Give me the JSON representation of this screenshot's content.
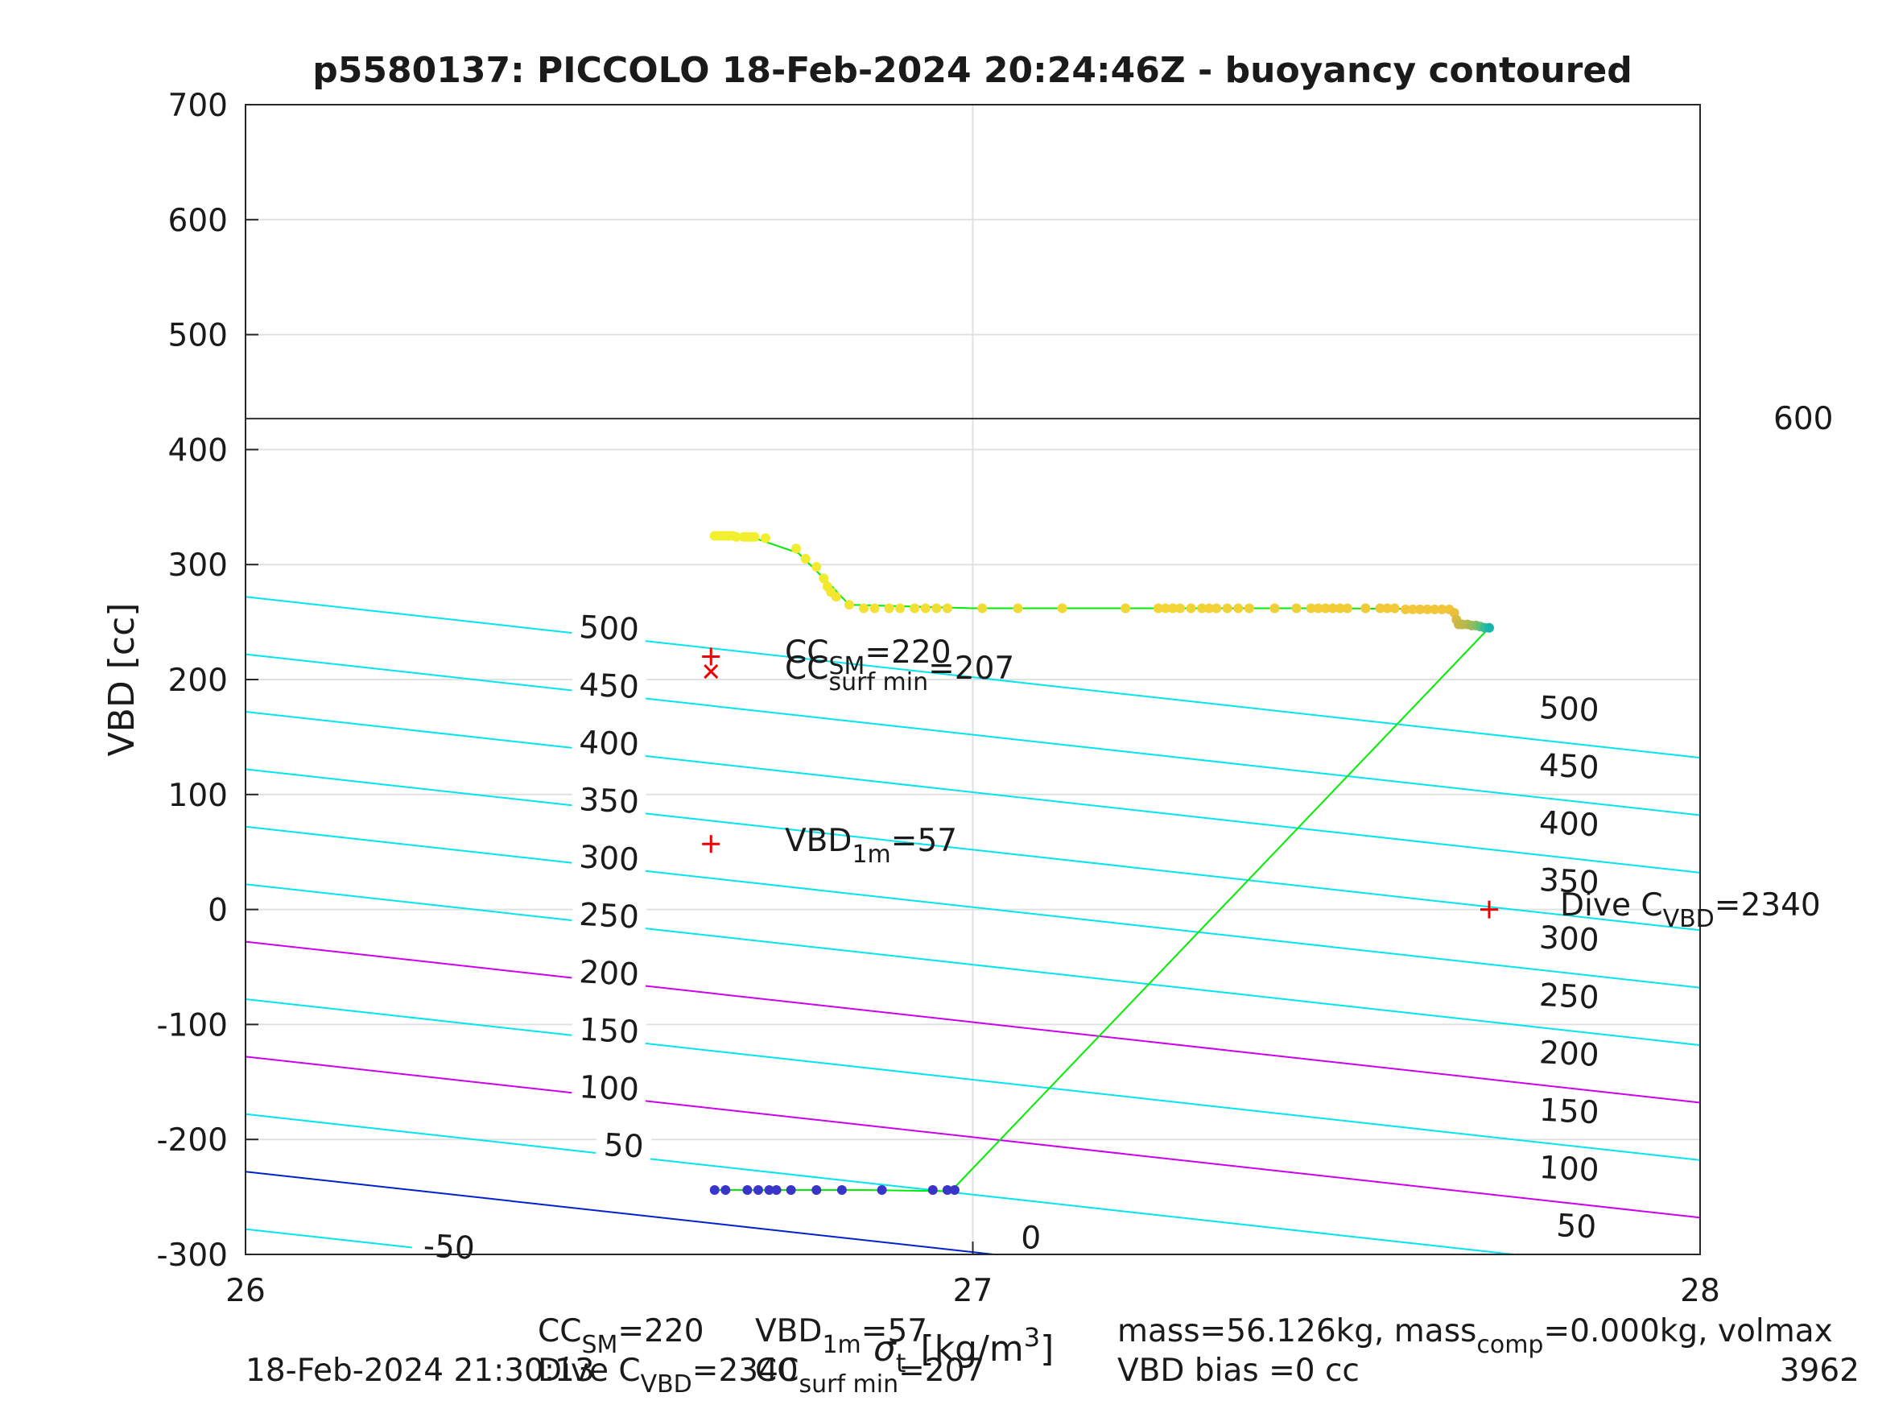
{
  "chart_data": {
    "type": "scatter",
    "title": "p5580137: PICCOLO 18-Feb-2024 20:24:46Z - buoyancy contoured",
    "ylabel": "VBD [cc]",
    "xlabel": {
      "main": "σ",
      "sub": "t",
      "unit": "[kg/m",
      "sup": "3",
      "close": "]"
    },
    "xlim": [
      26,
      28
    ],
    "ylim": [
      -300,
      700
    ],
    "xticks": [
      "26",
      "27",
      "28"
    ],
    "yticks": [
      "700",
      "600",
      "500",
      "400",
      "300",
      "200",
      "100",
      "0",
      "-100",
      "-200",
      "-300"
    ],
    "grid": true,
    "hline": {
      "y": 427,
      "label": "600"
    },
    "contours": [
      {
        "level": -50,
        "color": "#00e5ee",
        "y0": -278,
        "slope": -70
      },
      {
        "level": 0,
        "color": "#0022cc",
        "y0": -228,
        "slope": -70
      },
      {
        "level": 50,
        "color": "#00e5ee",
        "y0": -178,
        "slope": -70
      },
      {
        "level": 100,
        "color": "#cc00ee",
        "y0": -128,
        "slope": -70
      },
      {
        "level": 150,
        "color": "#00e5ee",
        "y0": -78,
        "slope": -70
      },
      {
        "level": 200,
        "color": "#cc00ee",
        "y0": -28,
        "slope": -70
      },
      {
        "level": 250,
        "color": "#00e5ee",
        "y0": 22,
        "slope": -70
      },
      {
        "level": 300,
        "color": "#00e5ee",
        "y0": 72,
        "slope": -70
      },
      {
        "level": 350,
        "color": "#00e5ee",
        "y0": 122,
        "slope": -70
      },
      {
        "level": 400,
        "color": "#00e5ee",
        "y0": 172,
        "slope": -70
      },
      {
        "level": 450,
        "color": "#00e5ee",
        "y0": 222,
        "slope": -70
      },
      {
        "level": 500,
        "color": "#00e5ee",
        "y0": 272,
        "slope": -70
      }
    ],
    "contour_labels_left": [
      {
        "text": "-50",
        "x": 26.28,
        "y": -293
      },
      {
        "text": "0",
        "x": 27.08,
        "y": -285
      },
      {
        "text": "50",
        "x": 26.52,
        "y": -205
      },
      {
        "text": "100",
        "x": 26.5,
        "y": -155
      },
      {
        "text": "150",
        "x": 26.5,
        "y": -105
      },
      {
        "text": "200",
        "x": 26.5,
        "y": -55
      },
      {
        "text": "250",
        "x": 26.5,
        "y": -5
      },
      {
        "text": "300",
        "x": 26.5,
        "y": 45
      },
      {
        "text": "350",
        "x": 26.5,
        "y": 95
      },
      {
        "text": "400",
        "x": 26.5,
        "y": 145
      },
      {
        "text": "450",
        "x": 26.5,
        "y": 195
      },
      {
        "text": "500",
        "x": 26.5,
        "y": 245
      }
    ],
    "contour_labels_right": [
      {
        "text": "50",
        "x": 27.83,
        "y": -275
      },
      {
        "text": "100",
        "x": 27.82,
        "y": -225
      },
      {
        "text": "150",
        "x": 27.82,
        "y": -175
      },
      {
        "text": "200",
        "x": 27.82,
        "y": -125
      },
      {
        "text": "250",
        "x": 27.82,
        "y": -75
      },
      {
        "text": "300",
        "x": 27.82,
        "y": -25
      },
      {
        "text": "350",
        "x": 27.82,
        "y": 25
      },
      {
        "text": "400",
        "x": 27.82,
        "y": 75
      },
      {
        "text": "450",
        "x": 27.82,
        "y": 125
      },
      {
        "text": "500",
        "x": 27.82,
        "y": 175
      }
    ],
    "trace": [
      {
        "x": 26.64,
        "y": 325
      },
      {
        "x": 26.7,
        "y": 323
      },
      {
        "x": 26.76,
        "y": 310
      },
      {
        "x": 26.8,
        "y": 285
      },
      {
        "x": 26.83,
        "y": 265
      },
      {
        "x": 27.0,
        "y": 262
      },
      {
        "x": 27.5,
        "y": 262
      },
      {
        "x": 27.66,
        "y": 261
      },
      {
        "x": 27.67,
        "y": 250
      },
      {
        "x": 27.71,
        "y": 245
      },
      {
        "x": 26.97,
        "y": -245
      },
      {
        "x": 26.85,
        "y": -244
      },
      {
        "x": 26.64,
        "y": -244
      }
    ],
    "trace_color": "#00ee00",
    "series_upper": [
      {
        "x": 26.645,
        "y": 325,
        "c": "#f2ef2e"
      },
      {
        "x": 26.65,
        "y": 325,
        "c": "#f2ef2e"
      },
      {
        "x": 26.655,
        "y": 325,
        "c": "#f2ef2e"
      },
      {
        "x": 26.66,
        "y": 325,
        "c": "#f2ef2e"
      },
      {
        "x": 26.665,
        "y": 325,
        "c": "#f2ef2e"
      },
      {
        "x": 26.67,
        "y": 325,
        "c": "#f2ef2e"
      },
      {
        "x": 26.675,
        "y": 324,
        "c": "#f2ef2e"
      },
      {
        "x": 26.685,
        "y": 324,
        "c": "#f2ef2e"
      },
      {
        "x": 26.69,
        "y": 324,
        "c": "#f2ef2e"
      },
      {
        "x": 26.695,
        "y": 324,
        "c": "#f2ef2e"
      },
      {
        "x": 26.7,
        "y": 324,
        "c": "#f2ef2e"
      },
      {
        "x": 26.715,
        "y": 323,
        "c": "#f2ef2e"
      },
      {
        "x": 26.757,
        "y": 314,
        "c": "#f2ec30"
      },
      {
        "x": 26.77,
        "y": 305,
        "c": "#f2ec30"
      },
      {
        "x": 26.785,
        "y": 298,
        "c": "#f2ea30"
      },
      {
        "x": 26.795,
        "y": 288,
        "c": "#f2ea30"
      },
      {
        "x": 26.8,
        "y": 281,
        "c": "#f2e830"
      },
      {
        "x": 26.805,
        "y": 276,
        "c": "#f2e830"
      },
      {
        "x": 26.812,
        "y": 272,
        "c": "#f2e630"
      },
      {
        "x": 26.83,
        "y": 265,
        "c": "#f2e432"
      },
      {
        "x": 26.85,
        "y": 262,
        "c": "#f2e232"
      },
      {
        "x": 26.865,
        "y": 262,
        "c": "#f2e232"
      },
      {
        "x": 26.885,
        "y": 262,
        "c": "#f2e033"
      },
      {
        "x": 26.9,
        "y": 262,
        "c": "#f2e033"
      },
      {
        "x": 26.92,
        "y": 262,
        "c": "#f2df33"
      },
      {
        "x": 26.935,
        "y": 262,
        "c": "#f2df33"
      },
      {
        "x": 26.95,
        "y": 262,
        "c": "#f2dd34"
      },
      {
        "x": 26.965,
        "y": 262,
        "c": "#f2dd34"
      },
      {
        "x": 27.013,
        "y": 262,
        "c": "#f2db34"
      },
      {
        "x": 27.062,
        "y": 262,
        "c": "#f2da34"
      },
      {
        "x": 27.123,
        "y": 262,
        "c": "#f2d835"
      },
      {
        "x": 27.21,
        "y": 262,
        "c": "#f2d635"
      },
      {
        "x": 27.255,
        "y": 262,
        "c": "#f2d535"
      },
      {
        "x": 27.265,
        "y": 262,
        "c": "#f2d535"
      },
      {
        "x": 27.275,
        "y": 262,
        "c": "#f2d435"
      },
      {
        "x": 27.285,
        "y": 262,
        "c": "#f2d435"
      },
      {
        "x": 27.3,
        "y": 262,
        "c": "#f2d336"
      },
      {
        "x": 27.315,
        "y": 262,
        "c": "#f2d336"
      },
      {
        "x": 27.325,
        "y": 262,
        "c": "#f2d236"
      },
      {
        "x": 27.335,
        "y": 262,
        "c": "#f2d236"
      },
      {
        "x": 27.35,
        "y": 262,
        "c": "#f2d136"
      },
      {
        "x": 27.365,
        "y": 262,
        "c": "#f2d136"
      },
      {
        "x": 27.38,
        "y": 262,
        "c": "#f2d036"
      },
      {
        "x": 27.415,
        "y": 262,
        "c": "#f2cf37"
      },
      {
        "x": 27.445,
        "y": 262,
        "c": "#f2ce37"
      },
      {
        "x": 27.465,
        "y": 262,
        "c": "#f2ce37"
      },
      {
        "x": 27.475,
        "y": 262,
        "c": "#f2cd37"
      },
      {
        "x": 27.485,
        "y": 262,
        "c": "#f2cd37"
      },
      {
        "x": 27.495,
        "y": 262,
        "c": "#f2cc37"
      },
      {
        "x": 27.505,
        "y": 262,
        "c": "#f2cc37"
      },
      {
        "x": 27.515,
        "y": 262,
        "c": "#f2cb38"
      },
      {
        "x": 27.54,
        "y": 262,
        "c": "#f2ca38"
      },
      {
        "x": 27.56,
        "y": 262,
        "c": "#f2c938"
      },
      {
        "x": 27.57,
        "y": 262,
        "c": "#f2c838"
      },
      {
        "x": 27.58,
        "y": 262,
        "c": "#f2c838"
      },
      {
        "x": 27.595,
        "y": 261,
        "c": "#f2c739"
      },
      {
        "x": 27.605,
        "y": 261,
        "c": "#f2c739"
      },
      {
        "x": 27.615,
        "y": 261,
        "c": "#f2c639"
      },
      {
        "x": 27.625,
        "y": 261,
        "c": "#f2c639"
      },
      {
        "x": 27.635,
        "y": 261,
        "c": "#f2c53a"
      },
      {
        "x": 27.645,
        "y": 261,
        "c": "#f2c53a"
      },
      {
        "x": 27.655,
        "y": 261,
        "c": "#f2c43a"
      },
      {
        "x": 27.662,
        "y": 258,
        "c": "#e9c03c"
      },
      {
        "x": 27.665,
        "y": 252,
        "c": "#d8bb40"
      },
      {
        "x": 27.668,
        "y": 248,
        "c": "#c8b845"
      },
      {
        "x": 27.673,
        "y": 248,
        "c": "#c0b848"
      },
      {
        "x": 27.68,
        "y": 248,
        "c": "#b5b84c"
      },
      {
        "x": 27.686,
        "y": 247,
        "c": "#a0bb55"
      },
      {
        "x": 27.692,
        "y": 247,
        "c": "#86bd62"
      },
      {
        "x": 27.698,
        "y": 246,
        "c": "#5cc07a"
      },
      {
        "x": 27.704,
        "y": 245,
        "c": "#33bd95"
      },
      {
        "x": 27.71,
        "y": 245,
        "c": "#18b5ab"
      }
    ],
    "series_lower": [
      {
        "x": 26.645,
        "y": -244
      },
      {
        "x": 26.66,
        "y": -244
      },
      {
        "x": 26.69,
        "y": -244
      },
      {
        "x": 26.705,
        "y": -244
      },
      {
        "x": 26.72,
        "y": -244
      },
      {
        "x": 26.73,
        "y": -244
      },
      {
        "x": 26.75,
        "y": -244
      },
      {
        "x": 26.785,
        "y": -244
      },
      {
        "x": 26.82,
        "y": -244
      },
      {
        "x": 26.875,
        "y": -244
      },
      {
        "x": 26.945,
        "y": -244
      },
      {
        "x": 26.965,
        "y": -244
      },
      {
        "x": 26.975,
        "y": -244
      }
    ],
    "series_lower_color": "#3a35c9",
    "markers": [
      {
        "symbol": "+",
        "x": 26.64,
        "y": 220
      },
      {
        "symbol": "×",
        "x": 26.64,
        "y": 207
      },
      {
        "symbol": "+",
        "x": 26.64,
        "y": 57
      },
      {
        "symbol": "+",
        "x": 27.71,
        "y": 0
      }
    ],
    "marker_color": "#ee0000",
    "annotations": {
      "cc_sm": {
        "base": "CC",
        "sub": "SM",
        "value": "=220"
      },
      "cc_surf": {
        "base": "CC",
        "sub": "surf min",
        "value": "=207"
      },
      "vbd_1m": {
        "base": "VBD",
        "sub": "1m",
        "value": "=57"
      },
      "dive_c": {
        "base": "Dive C",
        "sub": "VBD",
        "value": "=2340"
      }
    }
  },
  "footer": {
    "timestamp": "18-Feb-2024 21:30:13",
    "line1": {
      "base": "CC",
      "sub": "SM",
      "value": "=220"
    },
    "line1b": {
      "base": "VBD",
      "sub": "1m",
      "value": "=57"
    },
    "line2": {
      "base": "Dive C",
      "sub": "VBD",
      "value": "=2340"
    },
    "line2b": {
      "base": "CC",
      "sub": "surf min",
      "value": "=207"
    },
    "mass": {
      "p1": "mass=56.126kg, mass",
      "sub": "comp",
      "p2": "=0.000kg, volmax"
    },
    "bias": "VBD bias =0 cc",
    "number": "3962"
  }
}
